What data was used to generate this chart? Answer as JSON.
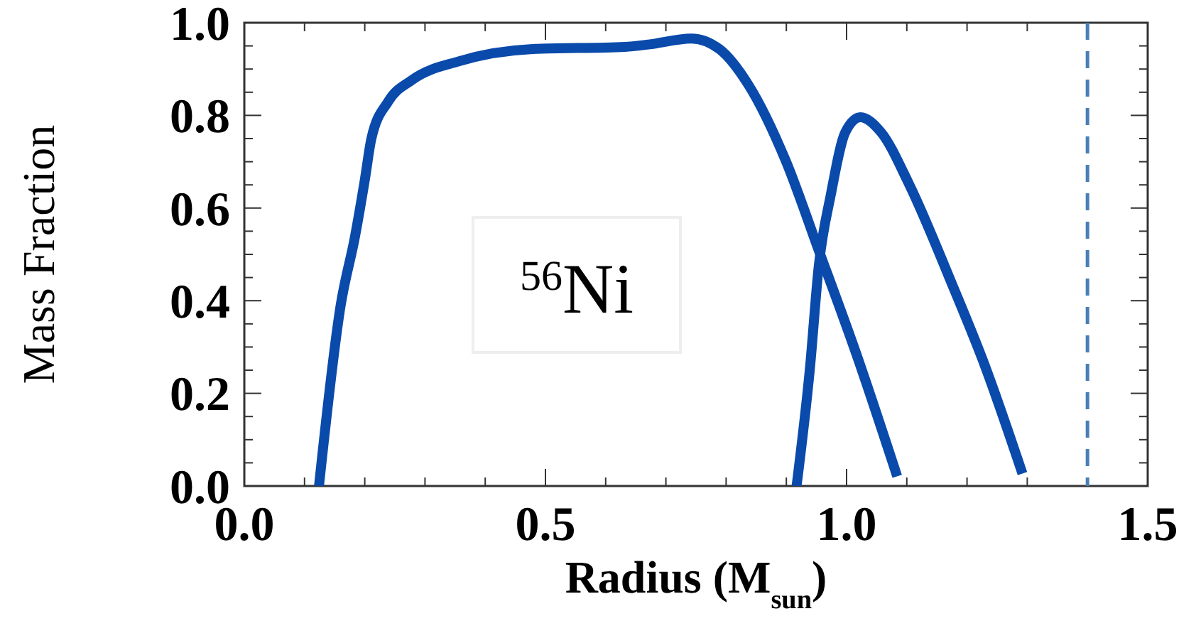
{
  "chart_data": {
    "type": "line",
    "xlabel": "Radius (M$_{sun}$)",
    "ylabel": "Mass Fraction",
    "annotations": [
      "$^{56}$Ni"
    ],
    "xlim": [
      0,
      1.5
    ],
    "xticks": [
      {
        "value": 0,
        "label": "0.0"
      },
      {
        "value": 0.1,
        "label": null
      },
      {
        "value": 0.2,
        "label": null
      },
      {
        "value": 0.3,
        "label": null
      },
      {
        "value": 0.4,
        "label": null
      },
      {
        "value": 0.5,
        "label": "0.5"
      },
      {
        "value": 0.6,
        "label": null
      },
      {
        "value": 0.7,
        "label": null
      },
      {
        "value": 0.8,
        "label": null
      },
      {
        "value": 0.9,
        "label": null
      },
      {
        "value": 1,
        "label": "1.0"
      },
      {
        "value": 1.1,
        "label": null
      },
      {
        "value": 1.2,
        "label": null
      },
      {
        "value": 1.3,
        "label": null
      },
      {
        "value": 1.4,
        "label": null
      },
      {
        "value": 1.5,
        "label": "1.5"
      }
    ],
    "ylim": [
      0,
      1
    ],
    "yticks": [
      {
        "value": 0,
        "label": "0.0"
      },
      {
        "value": 0.05,
        "label": null
      },
      {
        "value": 0.1,
        "label": null
      },
      {
        "value": 0.15,
        "label": null
      },
      {
        "value": 0.2,
        "label": "0.2"
      },
      {
        "value": 0.25,
        "label": null
      },
      {
        "value": 0.3,
        "label": null
      },
      {
        "value": 0.35,
        "label": null
      },
      {
        "value": 0.4,
        "label": "0.4"
      },
      {
        "value": 0.45,
        "label": null
      },
      {
        "value": 0.5,
        "label": null
      },
      {
        "value": 0.55,
        "label": null
      },
      {
        "value": 0.6,
        "label": "0.6"
      },
      {
        "value": 0.65,
        "label": null
      },
      {
        "value": 0.7,
        "label": null
      },
      {
        "value": 0.75,
        "label": null
      },
      {
        "value": 0.8,
        "label": "0.8"
      },
      {
        "value": 0.85,
        "label": null
      },
      {
        "value": 0.9,
        "label": null
      },
      {
        "value": 0.95,
        "label": null
      },
      {
        "value": 1,
        "label": "1.0"
      }
    ],
    "grid": false,
    "line_style": "solid",
    "marker": "none",
    "series": [
      {
        "color": "#0a4aab",
        "x": [
          0.124,
          0.16,
          0.184,
          0.2,
          0.211,
          0.239,
          0.278,
          0.357,
          0.475,
          0.632,
          0.671,
          0.742,
          0.789,
          0.837,
          0.899,
          0.954,
          1.017,
          1.084
        ],
        "values": [
          0,
          0.39,
          0.54,
          0.66,
          0.75,
          0.83,
          0.876,
          0.917,
          0.943,
          0.948,
          0.953,
          0.966,
          0.943,
          0.866,
          0.702,
          0.508,
          0.282,
          0.021
        ]
      },
      {
        "color": "#0a4aab",
        "x": [
          0.917,
          0.939,
          0.954,
          0.974,
          0.998,
          1.023,
          1.057,
          1.104,
          1.175,
          1.229,
          1.292
        ],
        "values": [
          0,
          0.252,
          0.477,
          0.63,
          0.764,
          0.796,
          0.764,
          0.651,
          0.436,
          0.262,
          0.027
        ]
      }
    ],
    "ref_lines": [
      {
        "axis": "x",
        "value": 1.4,
        "color": "#4a7fb5",
        "line_style": "dashed"
      }
    ]
  }
}
